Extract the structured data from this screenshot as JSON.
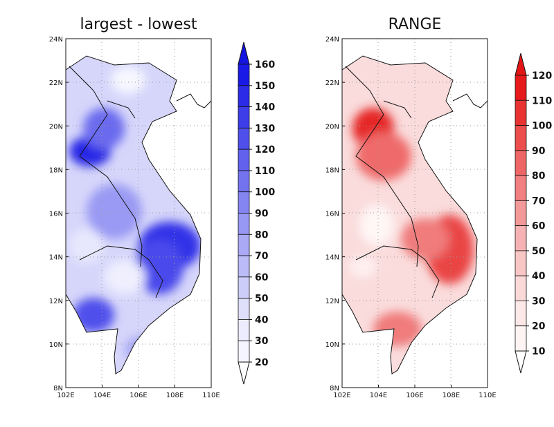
{
  "maps": [
    {
      "title": "largest - lowest",
      "colorbar": {
        "ticks": [
          "160",
          "150",
          "140",
          "130",
          "120",
          "110",
          "100",
          "90",
          "80",
          "70",
          "60",
          "50",
          "40",
          "30",
          "20"
        ],
        "colors": [
          "#1a1ae6",
          "#2b2be8",
          "#3d3dea",
          "#4f4fec",
          "#6161ee",
          "#7373f0",
          "#8585f2",
          "#9797f4",
          "#a9a9f6",
          "#bbbbf8",
          "#cdcdfa",
          "#dfdffc",
          "#ececfe",
          "#f5f5ff",
          "#ffffff"
        ],
        "extend_top_color": "#1515e0",
        "extend_bottom_color": "#ffffff"
      }
    },
    {
      "title": "RANGE",
      "colorbar": {
        "ticks": [
          "120",
          "110",
          "100",
          "90",
          "80",
          "70",
          "60",
          "50",
          "40",
          "30",
          "20",
          "10"
        ],
        "colors": [
          "#e61a1a",
          "#e93333",
          "#ec4d4d",
          "#ef6666",
          "#f28080",
          "#f49999",
          "#f7b3b3",
          "#f9c6c6",
          "#fbd9d9",
          "#fde8e8",
          "#fff4f4",
          "#ffffff"
        ],
        "extend_top_color": "#e31414",
        "extend_bottom_color": "#ffffff"
      }
    }
  ],
  "axes": {
    "lat_labels": [
      "24N",
      "22N",
      "20N",
      "18N",
      "16N",
      "14N",
      "12N",
      "10N",
      "8N"
    ],
    "lon_labels": [
      "102E",
      "104E",
      "106E",
      "108E",
      "110E"
    ],
    "grid": "dotted"
  }
}
